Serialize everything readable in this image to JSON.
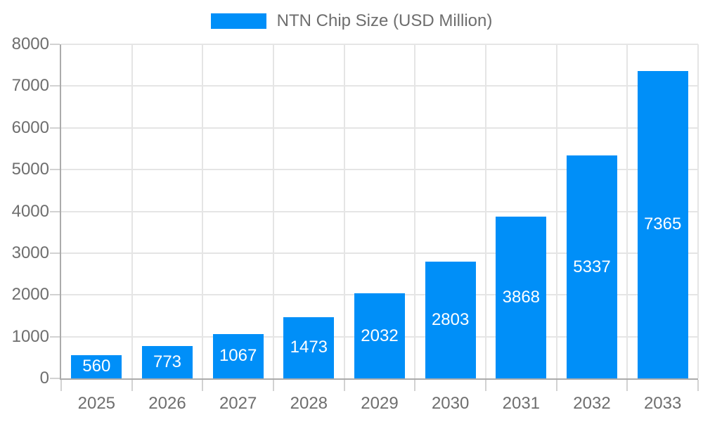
{
  "legend": {
    "label": "NTN Chip Size (USD Million)"
  },
  "chart_data": {
    "type": "bar",
    "title": "NTN Chip Size (USD Million)",
    "categories": [
      "2025",
      "2026",
      "2027",
      "2028",
      "2029",
      "2030",
      "2031",
      "2032",
      "2033"
    ],
    "values": [
      560,
      773,
      1067,
      1473,
      2032,
      2803,
      3868,
      5337,
      7365
    ],
    "series_name": "NTN Chip Size (USD Million)",
    "xlabel": "",
    "ylabel": "",
    "ylim": [
      0,
      8000
    ],
    "yticks": [
      0,
      1000,
      2000,
      3000,
      4000,
      5000,
      6000,
      7000,
      8000
    ],
    "grid": true,
    "legend_position": "top-center",
    "value_labels": "inside-center",
    "colors": {
      "bar": "#008ff8",
      "value_label": "#ffffff",
      "grid": "#e5e5e5",
      "tick": "#d2d2d2",
      "axis_line": "#ababab",
      "axis_text": "#6e6e6e",
      "background": "#ffffff"
    }
  }
}
